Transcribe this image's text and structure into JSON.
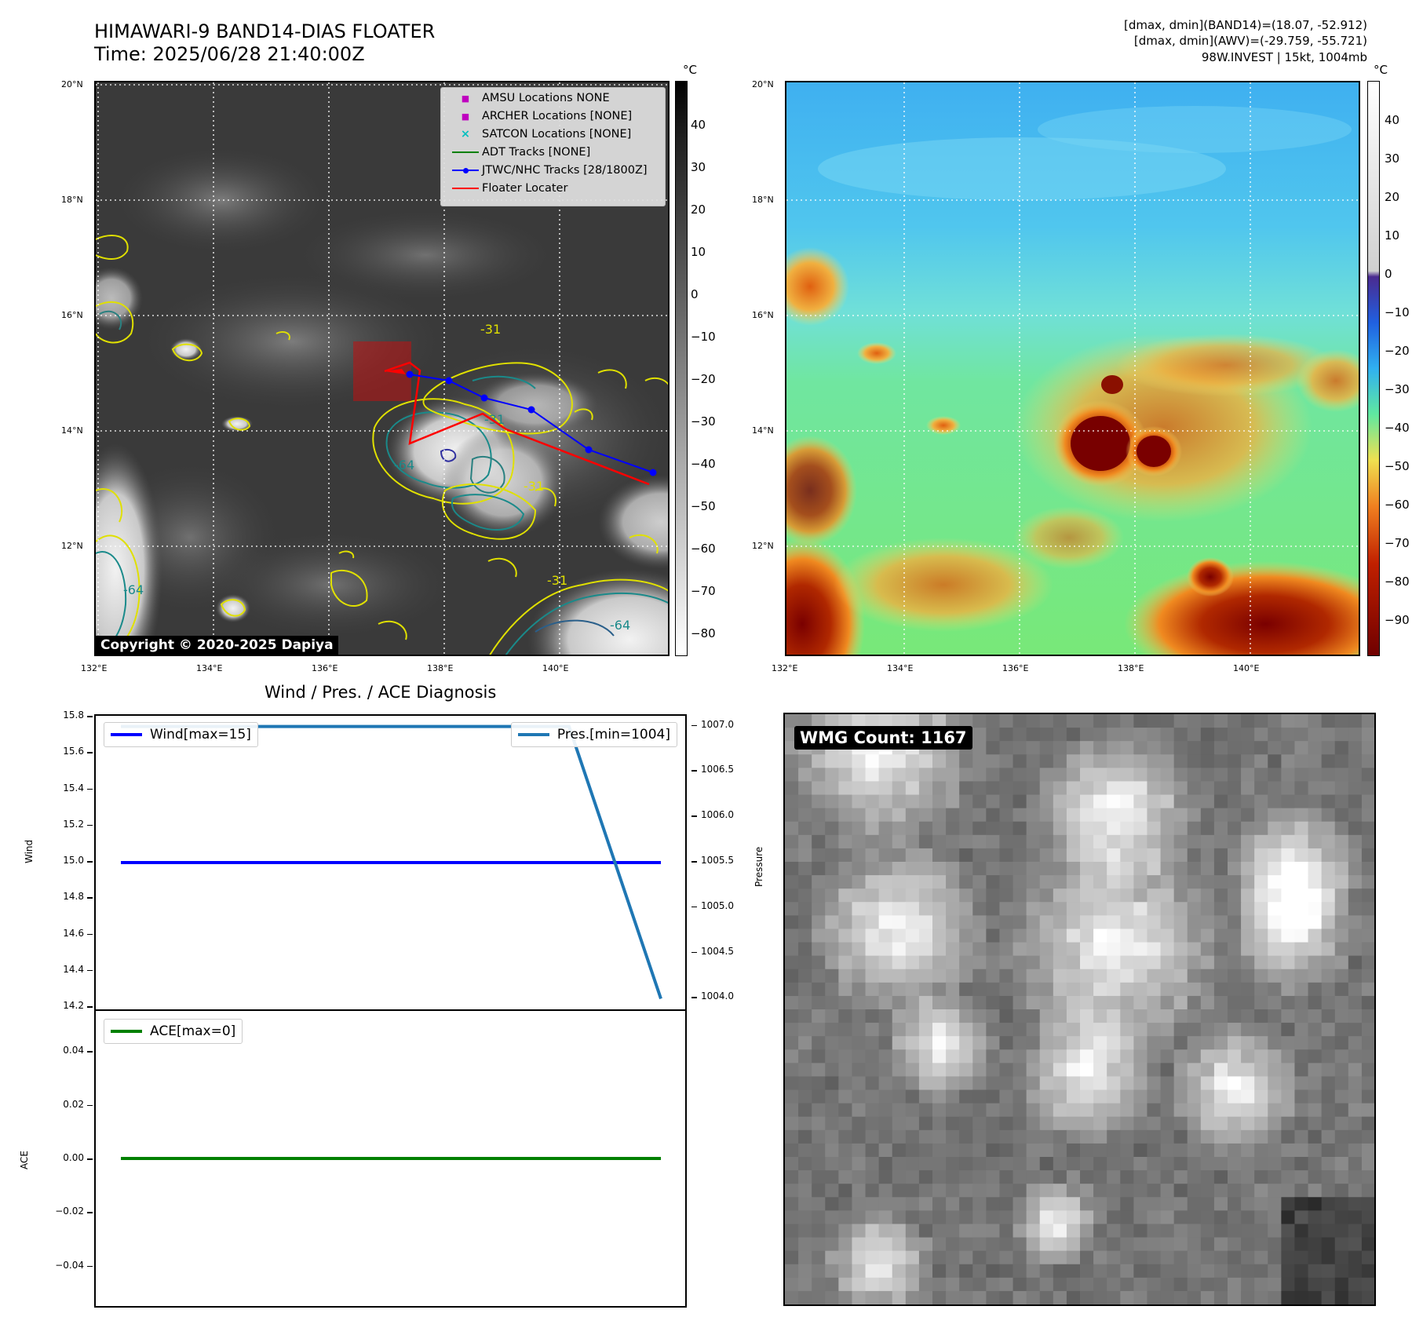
{
  "header": {
    "title_line1": "HIMAWARI-9 BAND14-DIAS FLOATER",
    "title_line2": "Time: 2025/06/28 21:40:00Z",
    "info_line1": "[dmax, dmin](BAND14)=(18.07, -52.912)",
    "info_line2": "[dmax, dmin](AWV)=(-29.759, -55.721)",
    "info_line3": "98W.INVEST | 15kt, 1004mb"
  },
  "map_left": {
    "lat_labels": [
      "20°N",
      "18°N",
      "16°N",
      "14°N",
      "12°N"
    ],
    "lon_labels": [
      "132°E",
      "134°E",
      "136°E",
      "138°E",
      "140°E"
    ],
    "copyright": "Copyright © 2020-2025 Dapiya",
    "contour_labels": [
      "-31",
      "-64",
      "-31",
      "-64",
      "-31",
      "-64",
      "-31"
    ],
    "legend": [
      {
        "label": "AMSU Locations NONE",
        "symbol": "■",
        "color": "#bf00bf"
      },
      {
        "label": "ARCHER Locations [NONE]",
        "symbol": "■",
        "color": "#bf00bf"
      },
      {
        "label": "SATCON Locations [NONE]",
        "symbol": "×",
        "color": "#00bfbf"
      },
      {
        "label": "ADT Tracks [NONE]",
        "symbol": "line",
        "color": "#008000"
      },
      {
        "label": "JTWC/NHC Tracks [28/1800Z]",
        "symbol": "line-dot",
        "color": "#0000ff"
      },
      {
        "label": "Floater Locater",
        "symbol": "line",
        "color": "#ff0000"
      }
    ],
    "colorbar_unit": "°C",
    "colorbar_ticks": [
      "40",
      "30",
      "20",
      "10",
      "0",
      "−10",
      "−20",
      "−30",
      "−40",
      "−50",
      "−60",
      "−70",
      "−80"
    ]
  },
  "map_right": {
    "lat_labels": [
      "20°N",
      "18°N",
      "16°N",
      "14°N",
      "12°N"
    ],
    "lon_labels": [
      "132°E",
      "134°E",
      "136°E",
      "138°E",
      "140°E"
    ],
    "colorbar_unit": "°C",
    "colorbar_ticks": [
      "40",
      "30",
      "20",
      "10",
      "0",
      "−10",
      "−20",
      "−30",
      "−40",
      "−50",
      "−60",
      "−70",
      "−80",
      "−90"
    ]
  },
  "diagnosis": {
    "title": "Wind / Pres. / ACE Diagnosis",
    "wind_ylabel": "Wind",
    "pressure_ylabel": "Pressure",
    "ace_ylabel": "ACE",
    "wind_ticks": [
      "15.8",
      "15.6",
      "15.4",
      "15.2",
      "15.0",
      "14.8",
      "14.6",
      "14.4",
      "14.2"
    ],
    "pressure_ticks": [
      "1007.0",
      "1006.5",
      "1006.0",
      "1005.5",
      "1005.0",
      "1004.5",
      "1004.0"
    ],
    "ace_ticks": [
      "0.04",
      "0.02",
      "0.00",
      "−0.02",
      "−0.04"
    ],
    "wind_legend": "Wind[max=15]",
    "pressure_legend": "Pres.[min=1004]",
    "ace_legend": "ACE[max=0]"
  },
  "wmg": {
    "label": "WMG Count: 1167"
  },
  "chart_data": [
    {
      "type": "line",
      "title": "Wind / Pres. / ACE Diagnosis",
      "series": [
        {
          "name": "Wind[max=15]",
          "axis": "Wind",
          "color": "#0000ff",
          "x": [
            0,
            1
          ],
          "values": [
            15,
            15
          ]
        },
        {
          "name": "Pres.[min=1004]",
          "axis": "Pressure",
          "color": "#1f77b4",
          "x": [
            0,
            0.83,
            1
          ],
          "values": [
            1007,
            1007,
            1004
          ]
        }
      ],
      "ylabel": "Wind",
      "ylim": [
        14.2,
        15.8
      ],
      "ylabel_right": "Pressure",
      "ylim_right": [
        1003.9,
        1007.1
      ]
    },
    {
      "type": "line",
      "series": [
        {
          "name": "ACE[max=0]",
          "color": "#008000",
          "x": [
            0,
            1
          ],
          "values": [
            0,
            0
          ]
        }
      ],
      "ylabel": "ACE",
      "ylim": [
        -0.055,
        0.055
      ]
    }
  ]
}
